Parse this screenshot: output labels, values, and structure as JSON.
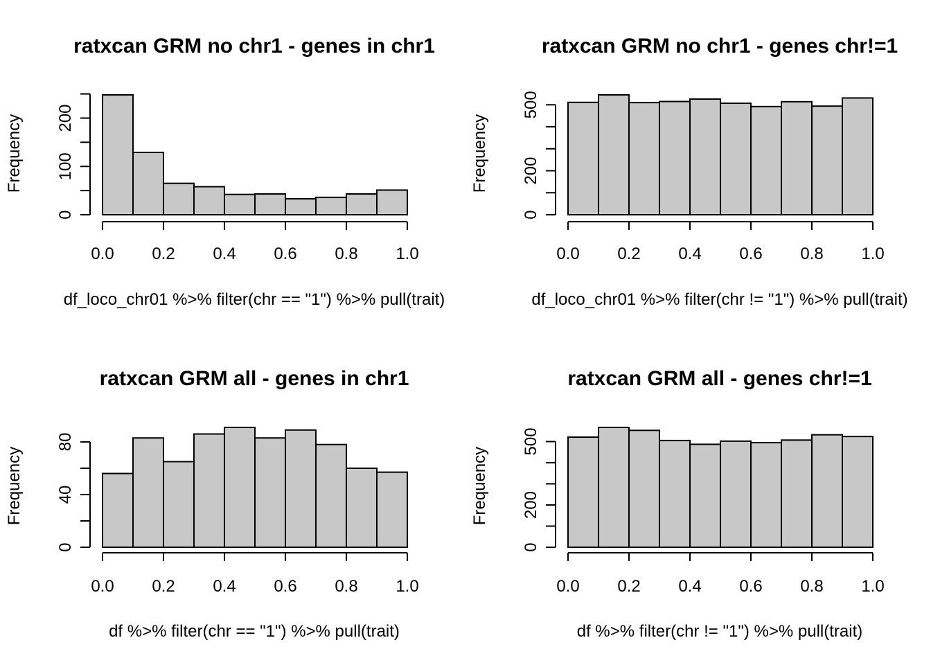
{
  "chart_data": [
    {
      "type": "bar",
      "title": "ratxcan GRM no chr1 - genes in chr1",
      "xlabel": "df_loco_chr01 %>% filter(chr == \"1\") %>% pull(trait)",
      "ylabel": "Frequency",
      "bin_edges": [
        0.0,
        0.1,
        0.2,
        0.3,
        0.4,
        0.5,
        0.6,
        0.7,
        0.8,
        0.9,
        1.0
      ],
      "values": [
        248,
        129,
        65,
        58,
        42,
        43,
        33,
        36,
        43,
        51
      ],
      "xlim": [
        0,
        1
      ],
      "ylim": [
        0,
        248
      ],
      "xticks": [
        0.0,
        0.2,
        0.4,
        0.6,
        0.8,
        1.0
      ],
      "xtick_labels": [
        "0.0",
        "0.2",
        "0.4",
        "0.6",
        "0.8",
        "1.0"
      ],
      "yticks": [
        0,
        50,
        100,
        150,
        200,
        250
      ],
      "ytick_labels": [
        "0",
        "",
        "100",
        "",
        "200",
        ""
      ]
    },
    {
      "type": "bar",
      "title": "ratxcan GRM no chr1 - genes chr!=1",
      "xlabel": "df_loco_chr01 %>% filter(chr != \"1\") %>% pull(trait)",
      "ylabel": "Frequency",
      "bin_edges": [
        0.0,
        0.1,
        0.2,
        0.3,
        0.4,
        0.5,
        0.6,
        0.7,
        0.8,
        0.9,
        1.0
      ],
      "values": [
        511,
        545,
        510,
        515,
        526,
        507,
        492,
        514,
        494,
        531
      ],
      "xlim": [
        0,
        1
      ],
      "ylim": [
        0,
        545
      ],
      "xticks": [
        0.0,
        0.2,
        0.4,
        0.6,
        0.8,
        1.0
      ],
      "xtick_labels": [
        "0.0",
        "0.2",
        "0.4",
        "0.6",
        "0.8",
        "1.0"
      ],
      "yticks": [
        0,
        100,
        200,
        300,
        400,
        500
      ],
      "ytick_labels": [
        "0",
        "",
        "200",
        "",
        "",
        "500"
      ]
    },
    {
      "type": "bar",
      "title": "ratxcan GRM all - genes in chr1",
      "xlabel": "df %>% filter(chr == \"1\") %>% pull(trait)",
      "ylabel": "Frequency",
      "bin_edges": [
        0.0,
        0.1,
        0.2,
        0.3,
        0.4,
        0.5,
        0.6,
        0.7,
        0.8,
        0.9,
        1.0
      ],
      "values": [
        56,
        83,
        65,
        86,
        91,
        83,
        89,
        78,
        60,
        57
      ],
      "xlim": [
        0,
        1
      ],
      "ylim": [
        0,
        91
      ],
      "xticks": [
        0.0,
        0.2,
        0.4,
        0.6,
        0.8,
        1.0
      ],
      "xtick_labels": [
        "0.0",
        "0.2",
        "0.4",
        "0.6",
        "0.8",
        "1.0"
      ],
      "yticks": [
        0,
        20,
        40,
        60,
        80
      ],
      "ytick_labels": [
        "0",
        "",
        "40",
        "",
        "80"
      ]
    },
    {
      "type": "bar",
      "title": "ratxcan GRM all - genes chr!=1",
      "xlabel": "df %>% filter(chr != \"1\") %>% pull(trait)",
      "ylabel": "Frequency",
      "bin_edges": [
        0.0,
        0.1,
        0.2,
        0.3,
        0.4,
        0.5,
        0.6,
        0.7,
        0.8,
        0.9,
        1.0
      ],
      "values": [
        521,
        567,
        553,
        505,
        487,
        502,
        495,
        507,
        532,
        524
      ],
      "xlim": [
        0,
        1
      ],
      "ylim": [
        0,
        567
      ],
      "xticks": [
        0.0,
        0.2,
        0.4,
        0.6,
        0.8,
        1.0
      ],
      "xtick_labels": [
        "0.0",
        "0.2",
        "0.4",
        "0.6",
        "0.8",
        "1.0"
      ],
      "yticks": [
        0,
        100,
        200,
        300,
        400,
        500
      ],
      "ytick_labels": [
        "0",
        "",
        "200",
        "",
        "",
        "500"
      ]
    }
  ]
}
